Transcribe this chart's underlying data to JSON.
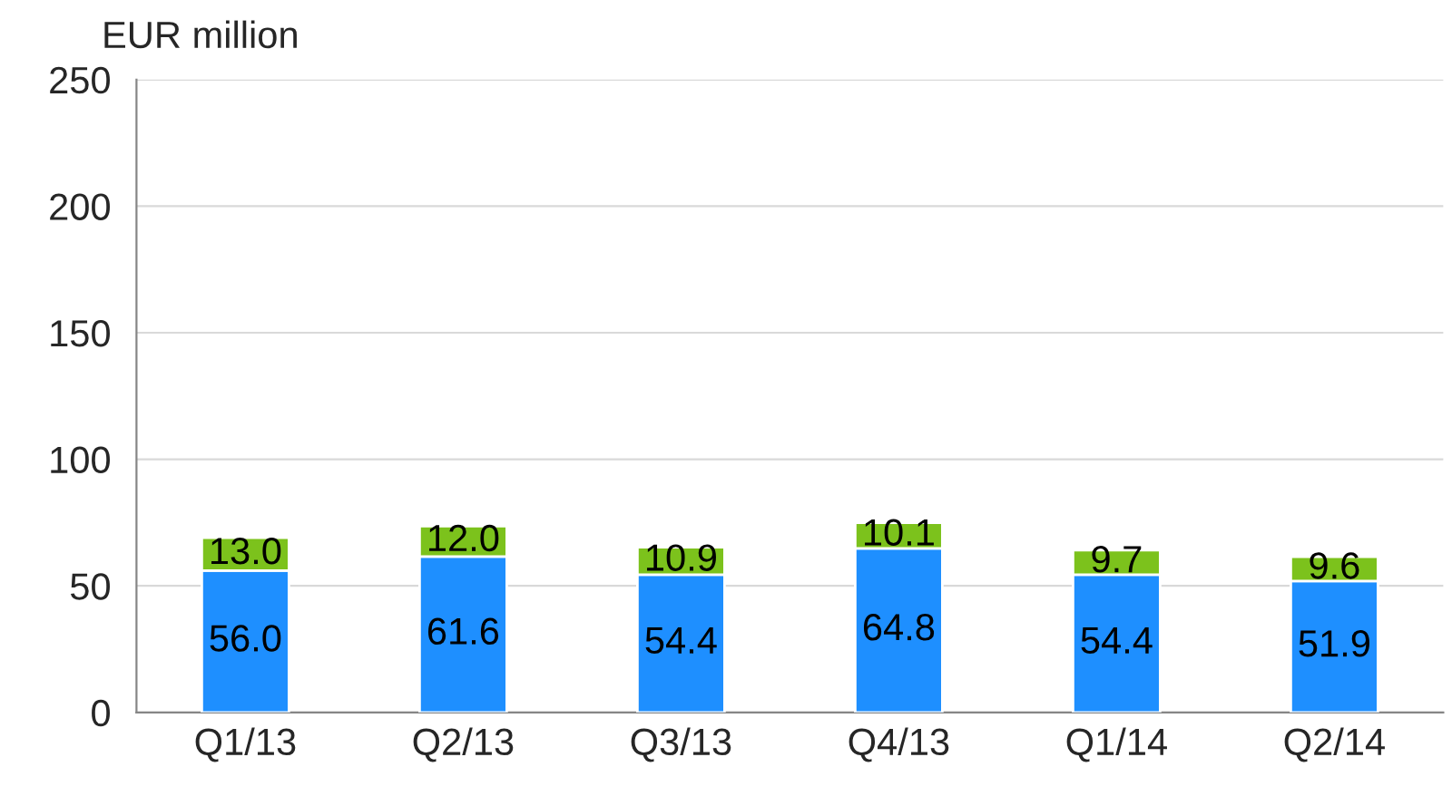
{
  "chart_data": {
    "type": "bar",
    "stacked": true,
    "ylabel": "EUR million",
    "categories": [
      "Q1/13",
      "Q2/13",
      "Q3/13",
      "Q4/13",
      "Q1/14",
      "Q2/14"
    ],
    "series": [
      {
        "color": "#1e8fff",
        "values": [
          56.0,
          61.6,
          54.4,
          64.8,
          54.4,
          51.9
        ],
        "value_labels": [
          "56.0",
          "61.6",
          "54.4",
          "64.8",
          "54.4",
          "51.9"
        ]
      },
      {
        "color": "#7cc21c",
        "values": [
          13.0,
          12.0,
          10.9,
          10.1,
          9.7,
          9.6
        ],
        "value_labels": [
          "13.0",
          "12.0",
          "10.9",
          "10.1",
          "9.7",
          "9.6"
        ]
      }
    ],
    "ylim": [
      0,
      250
    ],
    "yticks": [
      0,
      50,
      100,
      150,
      200,
      250
    ],
    "grid": "y"
  }
}
